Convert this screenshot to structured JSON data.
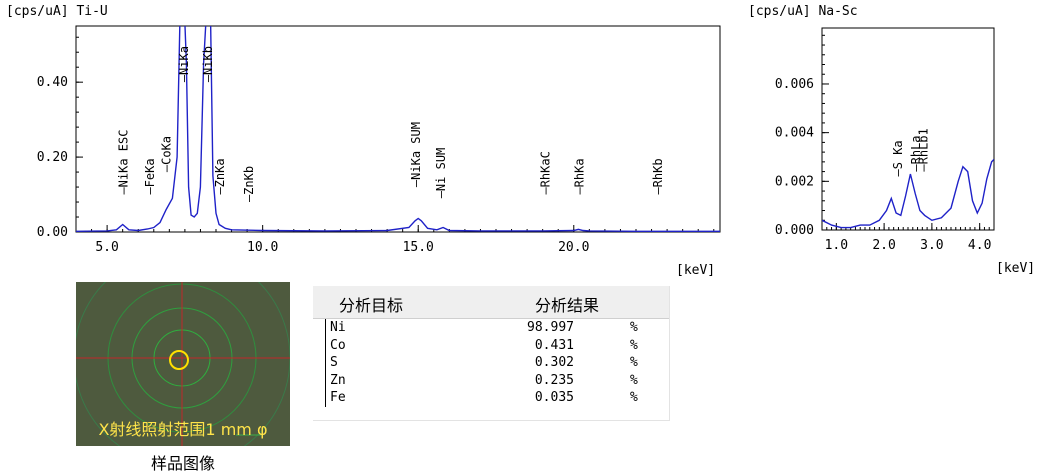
{
  "chart_data": [
    {
      "type": "line",
      "title": "Ti-U",
      "ylabel": "[cps/uA]",
      "xlabel": "[keV]",
      "xlim": [
        4.0,
        24.7
      ],
      "ylim": [
        0,
        0.55
      ],
      "xticks": [
        5.0,
        10.0,
        15.0,
        20.0
      ],
      "xtick_labels": [
        "5.0",
        "10.0",
        "15.0",
        "20.0"
      ],
      "yticks": [
        0.0,
        0.2,
        0.4
      ],
      "ytick_labels": [
        "0.00",
        "0.20",
        "0.40"
      ],
      "color": "#1f22c8",
      "series": [
        {
          "x": [
            4.0,
            5.0,
            5.3,
            5.5,
            5.7,
            6.0,
            6.3,
            6.5,
            6.7,
            6.9,
            7.1,
            7.25,
            7.35,
            7.42,
            7.48,
            7.55,
            7.62,
            7.7,
            7.8,
            7.9,
            8.0,
            8.1,
            8.2,
            8.25,
            8.32,
            8.4,
            8.5,
            8.6,
            8.8,
            9.0,
            10.0,
            12.0,
            14.0,
            14.7,
            14.9,
            15.0,
            15.1,
            15.3,
            15.6,
            15.8,
            16.0,
            17.0,
            19.0,
            20.0,
            20.15,
            20.3,
            20.5,
            22.0,
            23.0,
            24.7
          ],
          "y": [
            0.002,
            0.003,
            0.006,
            0.02,
            0.006,
            0.004,
            0.008,
            0.012,
            0.025,
            0.06,
            0.09,
            0.2,
            0.6,
            0.6,
            0.6,
            0.45,
            0.12,
            0.045,
            0.04,
            0.05,
            0.12,
            0.45,
            0.6,
            0.6,
            0.6,
            0.15,
            0.05,
            0.02,
            0.01,
            0.006,
            0.004,
            0.003,
            0.004,
            0.012,
            0.03,
            0.036,
            0.03,
            0.01,
            0.006,
            0.012,
            0.004,
            0.003,
            0.003,
            0.004,
            0.007,
            0.004,
            0.003,
            0.002,
            0.002,
            0.002
          ]
        }
      ],
      "annotations": [
        {
          "text": "NiKa ESC",
          "x": 5.55,
          "label_y": 0.1
        },
        {
          "text": "FeKa",
          "x": 6.4,
          "label_y": 0.1
        },
        {
          "text": "CoKa",
          "x": 6.93,
          "label_y": 0.16
        },
        {
          "text": "NiKa",
          "x": 7.48,
          "label_y": 0.4
        },
        {
          "text": "NiKb",
          "x": 8.26,
          "label_y": 0.4
        },
        {
          "text": "ZnKa",
          "x": 8.64,
          "label_y": 0.1
        },
        {
          "text": "ZnKb",
          "x": 9.57,
          "label_y": 0.08
        },
        {
          "text": "NiKa SUM",
          "x": 14.95,
          "label_y": 0.12
        },
        {
          "text": "Ni SUM",
          "x": 15.75,
          "label_y": 0.09
        },
        {
          "text": "RhKaC",
          "x": 19.1,
          "label_y": 0.1
        },
        {
          "text": "RhKa",
          "x": 20.2,
          "label_y": 0.1
        },
        {
          "text": "RhKb",
          "x": 22.72,
          "label_y": 0.1
        }
      ]
    },
    {
      "type": "line",
      "title": "Na-Sc",
      "ylabel": "[cps/uA]",
      "xlabel": "[keV]",
      "xlim": [
        0.7,
        4.3
      ],
      "ylim": [
        0,
        0.0083
      ],
      "xticks": [
        1.0,
        2.0,
        3.0,
        4.0
      ],
      "xtick_labels": [
        "1.0",
        "2.0",
        "3.0",
        "4.0"
      ],
      "yticks": [
        0.0,
        0.002,
        0.004,
        0.006
      ],
      "ytick_labels": [
        "0.000",
        "0.002",
        "0.004",
        "0.006"
      ],
      "color": "#1f22c8",
      "series": [
        {
          "x": [
            0.7,
            0.9,
            1.1,
            1.3,
            1.5,
            1.7,
            1.9,
            2.05,
            2.15,
            2.25,
            2.35,
            2.45,
            2.55,
            2.65,
            2.75,
            2.85,
            3.0,
            3.2,
            3.4,
            3.55,
            3.65,
            3.75,
            3.85,
            3.95,
            4.05,
            4.15,
            4.25,
            4.3
          ],
          "y": [
            0.0004,
            0.0002,
            0.0001,
            0.0001,
            0.0002,
            0.0002,
            0.0004,
            0.0008,
            0.0013,
            0.0007,
            0.0006,
            0.0014,
            0.0023,
            0.0015,
            0.0008,
            0.0006,
            0.0004,
            0.0005,
            0.0009,
            0.002,
            0.0026,
            0.0024,
            0.0012,
            0.0007,
            0.0011,
            0.0021,
            0.0028,
            0.0029
          ]
        }
      ],
      "annotations": [
        {
          "text": "S Ka",
          "x": 2.3,
          "label_y": 0.0022
        },
        {
          "text": "RhLa",
          "x": 2.68,
          "label_y": 0.0024
        },
        {
          "text": "RhLb1",
          "x": 2.84,
          "label_y": 0.0024
        }
      ]
    }
  ],
  "sample_image": {
    "caption": "X射线照射范围1 mm φ",
    "label": "样品图像"
  },
  "results": {
    "header_target": "分析目标",
    "header_result": "分析结果",
    "rows": [
      {
        "element": "Ni",
        "value": "98.997",
        "unit": "%"
      },
      {
        "element": "Co",
        "value": "0.431",
        "unit": "%"
      },
      {
        "element": "S",
        "value": "0.302",
        "unit": "%"
      },
      {
        "element": "Zn",
        "value": "0.235",
        "unit": "%"
      },
      {
        "element": "Fe",
        "value": "0.035",
        "unit": "%"
      }
    ]
  }
}
